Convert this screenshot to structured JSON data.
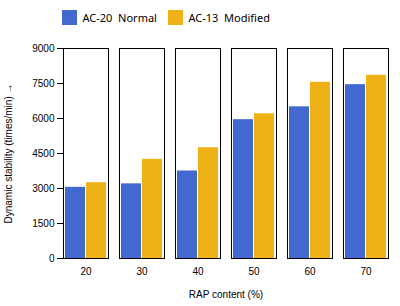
{
  "chart_data": {
    "type": "bar",
    "categories": [
      20,
      30,
      40,
      50,
      60,
      70
    ],
    "series": [
      {
        "name": "AC-20  Normal",
        "values": [
          3050,
          3200,
          3750,
          5950,
          6500,
          7450
        ]
      },
      {
        "name": "AC-13  Modified",
        "values": [
          3250,
          4250,
          4750,
          6200,
          7550,
          7850
        ]
      }
    ],
    "xlabel": "RAP content (%)",
    "ylabel": "Dynamic stability (times/min)",
    "ylim": [
      0,
      9000
    ],
    "yticks": [
      0,
      1500,
      3000,
      4500,
      6000,
      7500,
      9000
    ],
    "grid": false,
    "legend": "upper left"
  }
}
